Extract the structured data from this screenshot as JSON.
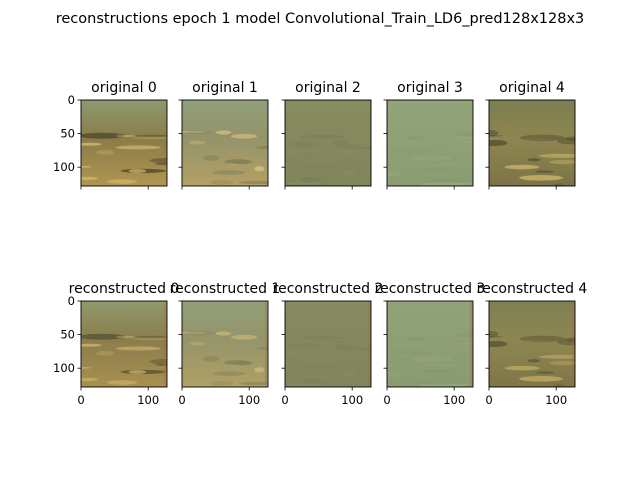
{
  "figure": {
    "title": "reconstructions epoch 1 model Convolutional_Train_LD6_pred128x128x3"
  },
  "chart_data": {
    "type": "image-grid",
    "rows": 2,
    "cols": 5,
    "axis_range": [
      0,
      128
    ],
    "y_ticks": [
      0,
      50,
      100
    ],
    "x_ticks": [
      0,
      100
    ],
    "colors": {
      "frame": "#000000",
      "background": "#ffffff"
    },
    "panels": [
      {
        "title": "original 0",
        "row": 0,
        "col": 0,
        "show_yticklabels": true,
        "show_xticklabels": false,
        "palette": {
          "top": "#8e9a6e",
          "mid": "#8a7c4a",
          "bottom": "#b09550",
          "highlight": "#e4c777",
          "dark": "#3d3a24"
        }
      },
      {
        "title": "original 1",
        "row": 0,
        "col": 1,
        "show_yticklabels": false,
        "show_xticklabels": false,
        "palette": {
          "top": "#8fa07a",
          "mid": "#94936a",
          "bottom": "#b4a064",
          "highlight": "#e0c880",
          "dark": "#7a7a55"
        }
      },
      {
        "title": "original 2",
        "row": 0,
        "col": 2,
        "show_yticklabels": false,
        "show_xticklabels": false,
        "palette": {
          "top": "#868c60",
          "mid": "#84895e",
          "bottom": "#80855a",
          "highlight": "#8c9064",
          "dark": "#7a7d56"
        }
      },
      {
        "title": "original 3",
        "row": 0,
        "col": 3,
        "show_yticklabels": false,
        "show_xticklabels": false,
        "palette": {
          "top": "#93a47a",
          "mid": "#8fa076",
          "bottom": "#8b9c72",
          "highlight": "#98a97e",
          "dark": "#869670"
        }
      },
      {
        "title": "original 4",
        "row": 0,
        "col": 4,
        "show_yticklabels": false,
        "show_xticklabels": false,
        "palette": {
          "top": "#7a7f52",
          "mid": "#8f8550",
          "bottom": "#7c7448",
          "highlight": "#d8c070",
          "dark": "#4a472e"
        }
      },
      {
        "title": "reconstructed 0",
        "row": 1,
        "col": 0,
        "show_yticklabels": true,
        "show_xticklabels": true,
        "palette": {
          "top": "#8f9a6e",
          "mid": "#8b7d4c",
          "bottom": "#a89050",
          "highlight": "#d9bf72",
          "dark": "#4a4630"
        }
      },
      {
        "title": "reconstructed 1",
        "row": 1,
        "col": 1,
        "show_yticklabels": false,
        "show_xticklabels": true,
        "palette": {
          "top": "#90a07a",
          "mid": "#95946a",
          "bottom": "#b0a064",
          "highlight": "#d4be7c",
          "dark": "#7d7d58"
        }
      },
      {
        "title": "reconstructed 2",
        "row": 1,
        "col": 2,
        "show_yticklabels": false,
        "show_xticklabels": true,
        "palette": {
          "top": "#878a62",
          "mid": "#85885e",
          "bottom": "#82855b",
          "highlight": "#8b8e64",
          "dark": "#7c7e57"
        }
      },
      {
        "title": "reconstructed 3",
        "row": 1,
        "col": 3,
        "show_yticklabels": false,
        "show_xticklabels": true,
        "palette": {
          "top": "#92a279",
          "mid": "#8e9e75",
          "bottom": "#8a9a72",
          "highlight": "#96a67c",
          "dark": "#85956f"
        }
      },
      {
        "title": "reconstructed 4",
        "row": 1,
        "col": 4,
        "show_yticklabels": false,
        "show_xticklabels": true,
        "palette": {
          "top": "#7d8054",
          "mid": "#8e8651",
          "bottom": "#7e7649",
          "highlight": "#ccb46c",
          "dark": "#504c32"
        }
      }
    ]
  }
}
